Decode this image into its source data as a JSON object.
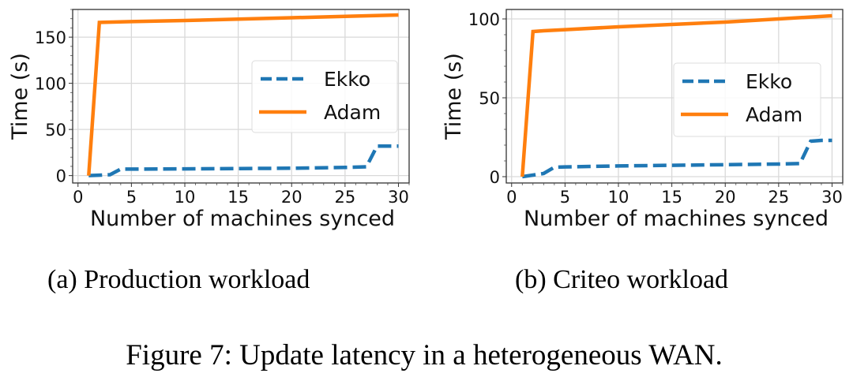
{
  "figure_caption": "Figure 7: Update latency in a heterogeneous WAN.",
  "colors": {
    "ekko": "#1f77b4",
    "adam": "#ff7f0e",
    "grid": "#d9d9d9",
    "frame": "#333333"
  },
  "chart_data": [
    {
      "type": "line",
      "subcaption": "(a) Production workload",
      "xlabel": "Number of machines synced",
      "ylabel": "Time (s)",
      "xlim": [
        -0.5,
        31
      ],
      "ylim": [
        -8,
        180
      ],
      "xticks": [
        0,
        5,
        10,
        15,
        20,
        25,
        30
      ],
      "xtick_labels": [
        "0",
        "5",
        "10",
        "15",
        "20",
        "25",
        "30"
      ],
      "yticks": [
        0,
        50,
        100,
        150
      ],
      "ytick_labels": [
        "0",
        "50",
        "100",
        "150"
      ],
      "grid": true,
      "legend_position": "center-right",
      "series": [
        {
          "name": "Ekko",
          "style": "dashed",
          "x": [
            1,
            2,
            3,
            4,
            5,
            10,
            15,
            20,
            25,
            27,
            28,
            29,
            30
          ],
          "y": [
            0,
            0.5,
            1,
            7,
            7,
            7.3,
            7.6,
            8,
            8.8,
            9.5,
            32,
            32,
            32
          ]
        },
        {
          "name": "Adam",
          "style": "solid",
          "x": [
            1,
            2,
            5,
            10,
            15,
            20,
            25,
            30
          ],
          "y": [
            0,
            166,
            166.8,
            168,
            169.5,
            171,
            172.5,
            174
          ]
        }
      ]
    },
    {
      "type": "line",
      "subcaption": "(b) Criteo workload",
      "xlabel": "Number of machines synced",
      "ylabel": "Time (s)",
      "xlim": [
        -0.5,
        31
      ],
      "ylim": [
        -4,
        106
      ],
      "xticks": [
        0,
        5,
        10,
        15,
        20,
        25,
        30
      ],
      "xtick_labels": [
        "0",
        "5",
        "10",
        "15",
        "20",
        "25",
        "30"
      ],
      "yticks": [
        0,
        50,
        100
      ],
      "ytick_labels": [
        "0",
        "50",
        "100"
      ],
      "grid": true,
      "legend_position": "center-right",
      "series": [
        {
          "name": "Ekko",
          "style": "dashed",
          "x": [
            1,
            2,
            3,
            4,
            5,
            10,
            15,
            20,
            25,
            27,
            28,
            29,
            30
          ],
          "y": [
            0,
            1,
            2,
            6,
            6.2,
            6.8,
            7.2,
            7.6,
            8,
            8.3,
            22.5,
            23,
            23
          ]
        },
        {
          "name": "Adam",
          "style": "solid",
          "x": [
            1,
            2,
            3,
            5,
            10,
            15,
            20,
            25,
            30
          ],
          "y": [
            0,
            92,
            92.5,
            93.2,
            95,
            96.5,
            98,
            100,
            102
          ]
        }
      ]
    }
  ]
}
